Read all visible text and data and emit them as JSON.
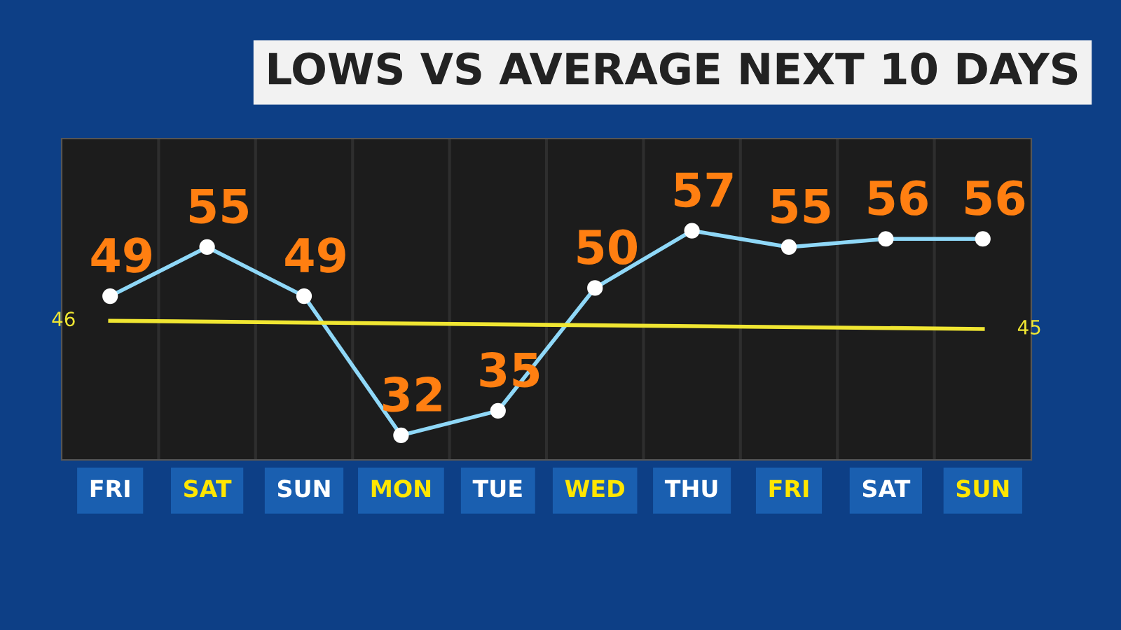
{
  "chart_data": {
    "type": "line",
    "title": "LOWS VS AVERAGE NEXT 10 DAYS",
    "categories": [
      "FRI",
      "SAT",
      "SUN",
      "MON",
      "TUE",
      "WED",
      "THU",
      "FRI",
      "SAT",
      "SUN"
    ],
    "series": [
      {
        "color": "#8fd8f8",
        "values": [
          49,
          55,
          49,
          32,
          35,
          50,
          57,
          55,
          56,
          56
        ],
        "marker": "circle",
        "data_labels": true
      },
      {
        "color": "#f0e632",
        "values": [
          46,
          null,
          null,
          null,
          null,
          null,
          null,
          null,
          null,
          45
        ],
        "value_labels": [
          "46",
          null,
          null,
          null,
          null,
          null,
          null,
          null,
          null,
          "45"
        ],
        "marker": "none"
      }
    ],
    "grid": false,
    "legend": false
  }
}
